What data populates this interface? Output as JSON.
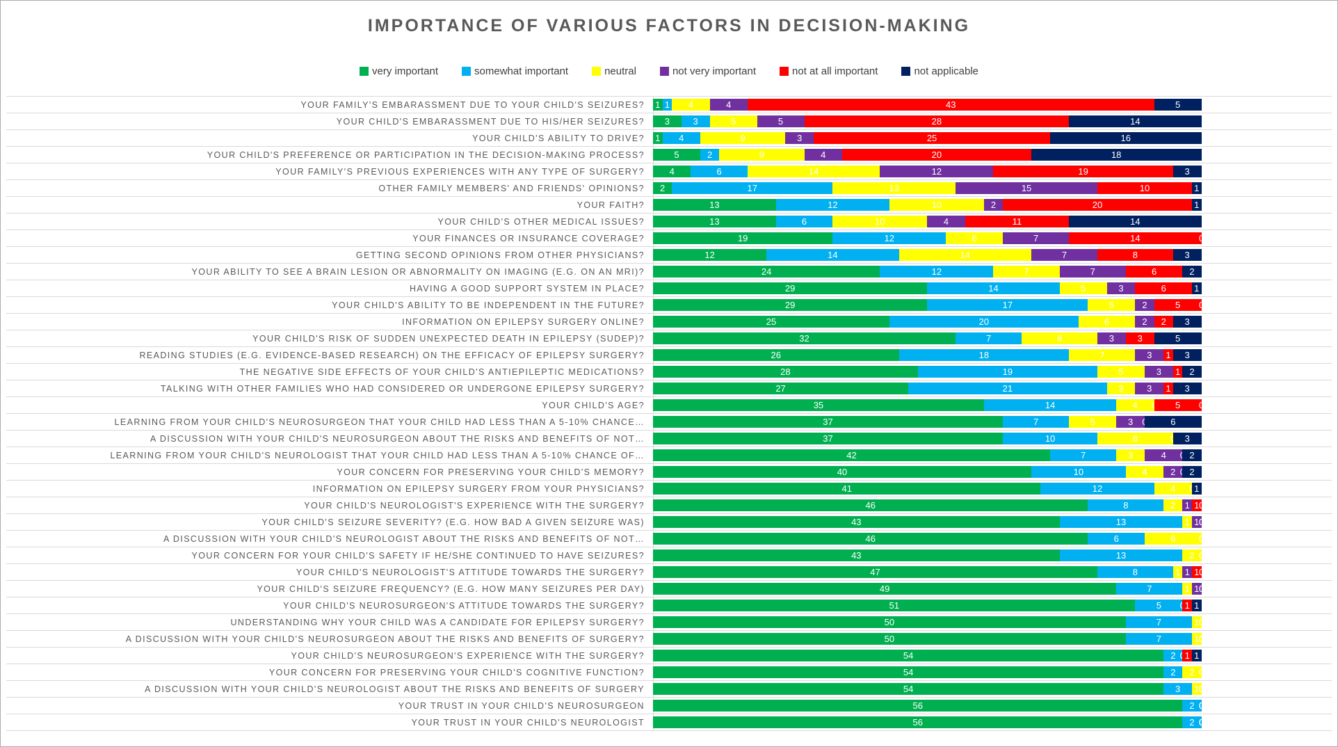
{
  "title": "IMPORTANCE OF VARIOUS FACTORS IN DECISION-MAKING",
  "legend": [
    {
      "label": "very important",
      "color": "#00B050"
    },
    {
      "label": "somewhat important",
      "color": "#00B0F0"
    },
    {
      "label": "neutral",
      "color": "#FFFF00"
    },
    {
      "label": "not very important",
      "color": "#7030A0"
    },
    {
      "label": "not at all important",
      "color": "#FF0000"
    },
    {
      "label": "not applicable",
      "color": "#002060"
    }
  ],
  "chart_data": {
    "type": "bar",
    "orientation": "horizontal-stacked",
    "title": "IMPORTANCE OF VARIOUS FACTORS IN DECISION-MAKING",
    "legend_position": "top",
    "grid": "category-lines",
    "x_axis": {
      "visible": false,
      "min": 0,
      "max": 71.8
    },
    "row_total": 58,
    "categories": [
      "YOUR FAMILY'S EMBARASSMENT DUE TO YOUR CHILD'S SEIZURES?",
      "YOUR CHILD'S EMBARASSMENT DUE TO HIS/HER SEIZURES?",
      "YOUR CHILD'S ABILITY TO DRIVE?",
      "YOUR CHILD'S PREFERENCE OR PARTICIPATION IN THE DECISION-MAKING PROCESS?",
      "YOUR FAMILY'S PREVIOUS EXPERIENCES WITH ANY TYPE OF SURGERY?",
      "OTHER FAMILY MEMBERS' AND FRIENDS' OPINIONS?",
      "YOUR FAITH?",
      "YOUR CHILD'S OTHER MEDICAL ISSUES?",
      "YOUR FINANCES OR INSURANCE COVERAGE?",
      "GETTING SECOND OPINIONS FROM OTHER PHYSICIANS?",
      "YOUR ABILITY TO SEE A BRAIN LESION OR ABNORMALITY ON IMAGING (E.G. ON AN MRI)?",
      "HAVING A GOOD SUPPORT SYSTEM IN PLACE?",
      "YOUR CHILD'S ABILITY TO BE INDEPENDENT IN THE FUTURE?",
      "INFORMATION ON EPILEPSY SURGERY ONLINE?",
      "YOUR CHILD'S RISK OF SUDDEN UNEXPECTED DEATH IN EPILEPSY (SUDEP)?",
      "READING STUDIES (E.G. EVIDENCE-BASED RESEARCH) ON THE EFFICACY OF EPILEPSY SURGERY?",
      "THE NEGATIVE SIDE EFFECTS OF YOUR CHILD'S ANTIEPILEPTIC MEDICATIONS?",
      "TALKING WITH OTHER FAMILIES WHO HAD CONSIDERED OR UNDERGONE EPILEPSY SURGERY?",
      "YOUR CHILD'S AGE?",
      "LEARNING FROM YOUR CHILD'S NEUROSURGEON THAT YOUR CHILD HAD LESS THAN A 5-10% CHANCE…",
      "A DISCUSSION WITH YOUR CHILD'S NEUROSURGEON ABOUT THE RISKS AND BENEFITS OF NOT…",
      "LEARNING FROM YOUR CHILD'S NEUROLOGIST THAT YOUR CHILD HAD LESS THAN A 5-10% CHANCE OF…",
      "YOUR CONCERN FOR PRESERVING YOUR CHILD'S MEMORY?",
      "INFORMATION ON EPILEPSY SURGERY FROM YOUR PHYSICIANS?",
      "YOUR CHILD'S NEUROLOGIST'S EXPERIENCE WITH THE SURGERY?",
      "YOUR CHILD'S SEIZURE SEVERITY? (E.G. HOW BAD A GIVEN SEIZURE WAS)",
      "A DISCUSSION WITH YOUR CHILD'S NEUROLOGIST ABOUT THE RISKS AND BENEFITS OF NOT…",
      "YOUR CONCERN FOR YOUR CHILD'S SAFETY IF HE/SHE CONTINUED TO HAVE SEIZURES?",
      "YOUR CHILD'S NEUROLOGIST'S ATTITUDE TOWARDS THE SURGERY?",
      "YOUR CHILD'S SEIZURE FREQUENCY? (E.G. HOW MANY SEIZURES PER DAY)",
      "YOUR CHILD'S NEUROSURGEON'S ATTITUDE TOWARDS THE SURGERY?",
      "UNDERSTANDING WHY YOUR CHILD WAS A CANDIDATE FOR EPILEPSY SURGERY?",
      "A DISCUSSION WITH YOUR CHILD'S NEUROSURGEON ABOUT THE RISKS AND BENEFITS OF SURGERY?",
      "YOUR CHILD'S NEUROSURGEON'S EXPERIENCE WITH THE SURGERY?",
      "YOUR CONCERN FOR PRESERVING YOUR CHILD'S COGNITIVE FUNCTION?",
      "A DISCUSSION WITH YOUR CHILD'S NEUROLOGIST ABOUT THE RISKS AND BENEFITS OF SURGERY",
      "YOUR TRUST IN YOUR CHILD'S NEUROSURGEON",
      "YOUR TRUST IN YOUR CHILD'S NEUROLOGIST"
    ],
    "series": [
      {
        "name": "very important",
        "color": "#00B050",
        "values": [
          1,
          3,
          1,
          5,
          4,
          2,
          13,
          13,
          19,
          12,
          24,
          29,
          29,
          25,
          32,
          26,
          28,
          27,
          35,
          37,
          37,
          42,
          40,
          41,
          46,
          43,
          46,
          43,
          47,
          49,
          51,
          50,
          50,
          54,
          54,
          54,
          56,
          56
        ]
      },
      {
        "name": "somewhat important",
        "color": "#00B0F0",
        "values": [
          1,
          3,
          4,
          2,
          6,
          17,
          12,
          6,
          12,
          14,
          12,
          14,
          17,
          20,
          7,
          18,
          19,
          21,
          14,
          7,
          10,
          7,
          10,
          12,
          8,
          13,
          6,
          13,
          8,
          7,
          5,
          7,
          7,
          2,
          2,
          3,
          2,
          2
        ]
      },
      {
        "name": "neutral",
        "color": "#FFFF00",
        "values": [
          4,
          5,
          9,
          9,
          14,
          13,
          10,
          10,
          6,
          14,
          7,
          5,
          5,
          6,
          8,
          7,
          5,
          3,
          4,
          5,
          8,
          3,
          4,
          4,
          2,
          1,
          6,
          2,
          1,
          1,
          0,
          1,
          1,
          0,
          2,
          1,
          0,
          0
        ]
      },
      {
        "name": "not very important",
        "color": "#7030A0",
        "values": [
          4,
          5,
          3,
          4,
          12,
          15,
          2,
          4,
          7,
          7,
          7,
          3,
          2,
          2,
          3,
          3,
          3,
          3,
          0,
          3,
          0,
          4,
          2,
          0,
          1,
          1,
          0,
          0,
          1,
          1,
          0,
          0,
          0,
          0,
          0,
          0,
          0,
          0
        ]
      },
      {
        "name": "not at all important",
        "color": "#FF0000",
        "values": [
          43,
          28,
          25,
          20,
          19,
          10,
          20,
          11,
          14,
          8,
          6,
          6,
          5,
          2,
          3,
          1,
          1,
          1,
          5,
          0,
          0,
          0,
          0,
          0,
          1,
          0,
          0,
          0,
          1,
          0,
          1,
          0,
          0,
          1,
          0,
          0,
          0,
          0
        ]
      },
      {
        "name": "not applicable",
        "color": "#002060",
        "values": [
          5,
          14,
          16,
          18,
          3,
          1,
          1,
          14,
          0,
          3,
          2,
          1,
          0,
          3,
          5,
          3,
          2,
          3,
          0,
          6,
          3,
          2,
          2,
          1,
          0,
          0,
          0,
          0,
          0,
          0,
          1,
          0,
          0,
          1,
          0,
          0,
          0,
          0
        ]
      }
    ]
  }
}
